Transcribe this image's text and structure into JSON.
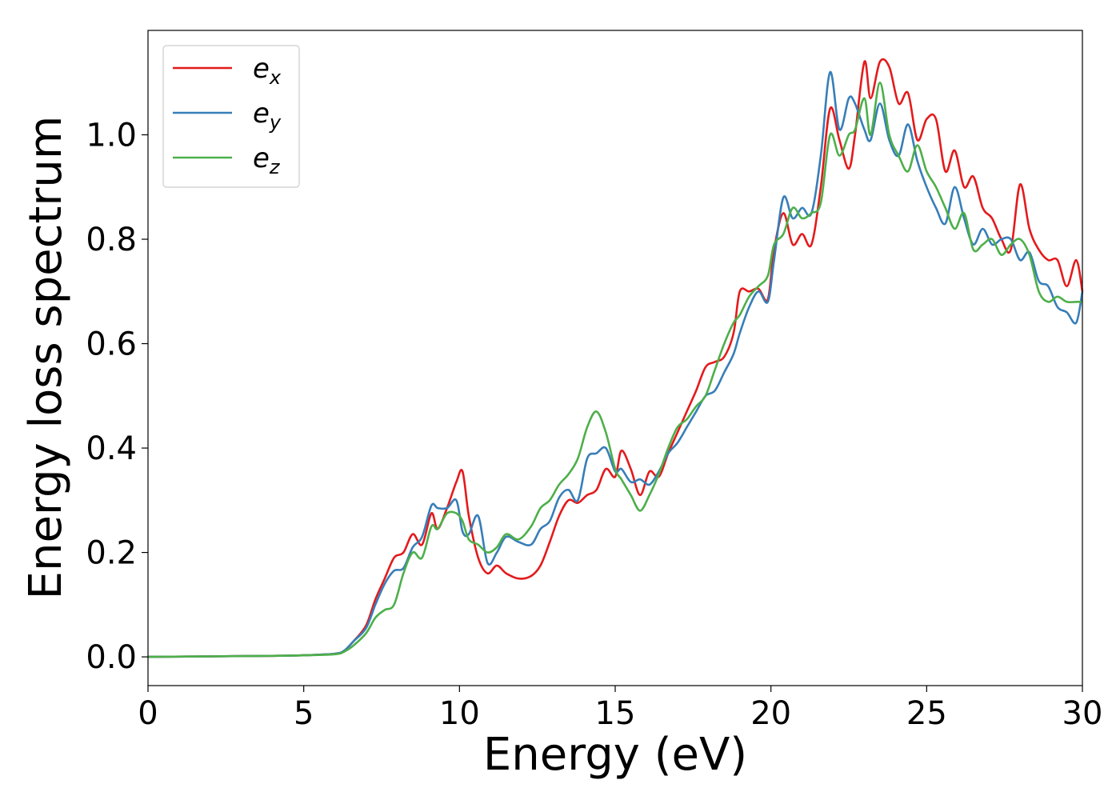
{
  "chart_data": {
    "type": "line",
    "xlabel": "Energy (eV)",
    "ylabel": "Energy loss spectrum",
    "xlim": [
      0,
      30
    ],
    "ylim": [
      -0.055,
      1.2
    ],
    "xticks": [
      0,
      5,
      10,
      15,
      20,
      25,
      30
    ],
    "xtick_labels": [
      "0",
      "5",
      "10",
      "15",
      "20",
      "25",
      "30"
    ],
    "yticks": [
      0.0,
      0.2,
      0.4,
      0.6,
      0.8,
      1.0
    ],
    "ytick_labels": [
      "0.0",
      "0.2",
      "0.4",
      "0.6",
      "0.8",
      "1.0"
    ],
    "grid": false,
    "legend_position": "top-left",
    "series": [
      {
        "name": "e",
        "subscript": "x",
        "color": "#e41a1c",
        "x": [
          0,
          2,
          4,
          5,
          6,
          6.3,
          6.6,
          7,
          7.3,
          7.6,
          7.9,
          8.2,
          8.5,
          8.8,
          9.1,
          9.3,
          9.6,
          9.9,
          10.1,
          10.3,
          10.6,
          10.9,
          11.2,
          11.5,
          11.9,
          12.3,
          12.6,
          12.9,
          13.2,
          13.5,
          13.8,
          14.1,
          14.4,
          14.7,
          15.0,
          15.2,
          15.5,
          15.8,
          16.1,
          16.4,
          16.7,
          17.0,
          17.3,
          17.6,
          17.9,
          18.2,
          18.5,
          18.8,
          19.0,
          19.3,
          19.6,
          19.9,
          20.1,
          20.4,
          20.7,
          21.0,
          21.3,
          21.6,
          21.9,
          22.2,
          22.5,
          22.7,
          23.0,
          23.2,
          23.5,
          23.8,
          24.1,
          24.4,
          24.7,
          25.0,
          25.3,
          25.6,
          25.9,
          26.2,
          26.5,
          26.8,
          27.1,
          27.4,
          27.7,
          28.0,
          28.3,
          28.6,
          28.9,
          29.2,
          29.5,
          29.8,
          30.0
        ],
        "y": [
          0.0,
          0.001,
          0.002,
          0.003,
          0.006,
          0.012,
          0.03,
          0.06,
          0.11,
          0.15,
          0.19,
          0.2,
          0.235,
          0.215,
          0.275,
          0.245,
          0.285,
          0.335,
          0.355,
          0.27,
          0.19,
          0.16,
          0.175,
          0.16,
          0.15,
          0.155,
          0.175,
          0.22,
          0.27,
          0.3,
          0.295,
          0.31,
          0.32,
          0.36,
          0.345,
          0.395,
          0.36,
          0.31,
          0.355,
          0.345,
          0.39,
          0.43,
          0.47,
          0.51,
          0.555,
          0.565,
          0.575,
          0.62,
          0.7,
          0.7,
          0.705,
          0.685,
          0.78,
          0.85,
          0.79,
          0.81,
          0.79,
          0.9,
          1.05,
          0.99,
          0.935,
          1.0,
          1.14,
          1.07,
          1.14,
          1.13,
          1.06,
          1.08,
          0.99,
          1.03,
          1.03,
          0.93,
          0.97,
          0.9,
          0.92,
          0.86,
          0.84,
          0.8,
          0.78,
          0.905,
          0.82,
          0.78,
          0.76,
          0.76,
          0.71,
          0.76,
          0.7
        ]
      },
      {
        "name": "e",
        "subscript": "y",
        "color": "#377eb8",
        "x": [
          0,
          2,
          4,
          5,
          6,
          6.3,
          6.6,
          7,
          7.3,
          7.6,
          7.9,
          8.2,
          8.5,
          8.8,
          9.1,
          9.3,
          9.6,
          9.9,
          10.1,
          10.3,
          10.6,
          10.9,
          11.2,
          11.5,
          11.9,
          12.3,
          12.6,
          12.9,
          13.2,
          13.5,
          13.8,
          14.1,
          14.4,
          14.7,
          15.0,
          15.2,
          15.5,
          15.8,
          16.1,
          16.4,
          16.7,
          17.0,
          17.3,
          17.6,
          17.9,
          18.2,
          18.5,
          18.8,
          19.0,
          19.3,
          19.6,
          19.9,
          20.1,
          20.4,
          20.7,
          21.0,
          21.3,
          21.6,
          21.9,
          22.2,
          22.5,
          22.7,
          23.0,
          23.2,
          23.5,
          23.8,
          24.1,
          24.4,
          24.7,
          25.0,
          25.3,
          25.6,
          25.9,
          26.2,
          26.5,
          26.8,
          27.1,
          27.4,
          27.7,
          28.0,
          28.3,
          28.6,
          28.9,
          29.2,
          29.5,
          29.8,
          30.0
        ],
        "y": [
          0.0,
          0.001,
          0.002,
          0.003,
          0.006,
          0.012,
          0.03,
          0.055,
          0.1,
          0.14,
          0.165,
          0.17,
          0.21,
          0.23,
          0.29,
          0.285,
          0.285,
          0.3,
          0.24,
          0.235,
          0.27,
          0.18,
          0.2,
          0.23,
          0.22,
          0.215,
          0.245,
          0.26,
          0.305,
          0.32,
          0.3,
          0.38,
          0.39,
          0.4,
          0.355,
          0.36,
          0.335,
          0.34,
          0.33,
          0.355,
          0.39,
          0.41,
          0.44,
          0.47,
          0.5,
          0.51,
          0.545,
          0.58,
          0.62,
          0.67,
          0.7,
          0.68,
          0.76,
          0.88,
          0.84,
          0.86,
          0.85,
          0.96,
          1.12,
          1.01,
          1.07,
          1.06,
          1.01,
          0.99,
          1.06,
          0.99,
          0.96,
          1.02,
          0.95,
          0.9,
          0.86,
          0.83,
          0.9,
          0.84,
          0.79,
          0.82,
          0.79,
          0.8,
          0.8,
          0.76,
          0.775,
          0.72,
          0.71,
          0.67,
          0.66,
          0.64,
          0.7
        ]
      },
      {
        "name": "e",
        "subscript": "z",
        "color": "#4daf4a",
        "x": [
          0,
          2,
          4,
          5,
          6,
          6.3,
          6.6,
          7,
          7.3,
          7.6,
          7.9,
          8.2,
          8.5,
          8.8,
          9.1,
          9.3,
          9.6,
          9.9,
          10.1,
          10.3,
          10.6,
          10.9,
          11.2,
          11.5,
          11.9,
          12.3,
          12.6,
          12.9,
          13.2,
          13.5,
          13.8,
          14.1,
          14.4,
          14.7,
          15.0,
          15.2,
          15.5,
          15.8,
          16.1,
          16.4,
          16.7,
          17.0,
          17.3,
          17.6,
          17.9,
          18.2,
          18.5,
          18.8,
          19.0,
          19.3,
          19.6,
          19.9,
          20.1,
          20.4,
          20.7,
          21.0,
          21.3,
          21.6,
          21.9,
          22.2,
          22.5,
          22.7,
          23.0,
          23.2,
          23.5,
          23.8,
          24.1,
          24.4,
          24.7,
          25.0,
          25.3,
          25.6,
          25.9,
          26.2,
          26.5,
          26.8,
          27.1,
          27.4,
          27.7,
          28.0,
          28.3,
          28.6,
          28.9,
          29.2,
          29.5,
          29.8,
          30.0
        ],
        "y": [
          0.0,
          0.001,
          0.002,
          0.003,
          0.005,
          0.01,
          0.022,
          0.045,
          0.075,
          0.09,
          0.1,
          0.16,
          0.2,
          0.19,
          0.25,
          0.245,
          0.275,
          0.275,
          0.26,
          0.225,
          0.215,
          0.2,
          0.21,
          0.235,
          0.225,
          0.25,
          0.285,
          0.3,
          0.33,
          0.35,
          0.38,
          0.44,
          0.47,
          0.43,
          0.36,
          0.34,
          0.31,
          0.28,
          0.31,
          0.35,
          0.4,
          0.44,
          0.455,
          0.48,
          0.5,
          0.55,
          0.6,
          0.64,
          0.655,
          0.69,
          0.71,
          0.73,
          0.79,
          0.81,
          0.86,
          0.84,
          0.85,
          0.87,
          1.0,
          0.96,
          1.0,
          1.01,
          1.07,
          1.0,
          1.1,
          1.0,
          0.96,
          0.93,
          0.98,
          0.93,
          0.9,
          0.86,
          0.82,
          0.85,
          0.78,
          0.79,
          0.8,
          0.77,
          0.79,
          0.8,
          0.77,
          0.7,
          0.68,
          0.69,
          0.68,
          0.68,
          0.68
        ]
      }
    ]
  }
}
